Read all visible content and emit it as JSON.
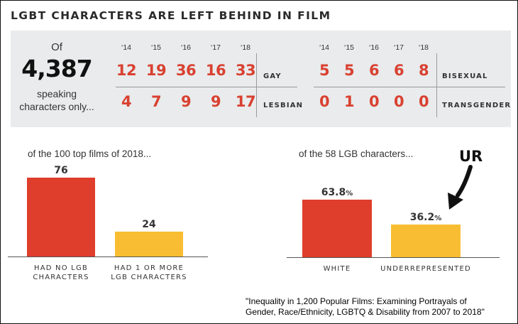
{
  "title": "LGBT CHARACTERS ARE LEFT BEHIND IN FILM",
  "summary": {
    "of_label": "Of",
    "total": "4,387",
    "caption_line1": "speaking",
    "caption_line2": "characters only..."
  },
  "years": [
    "‘14",
    "‘15",
    "‘16",
    "‘17",
    "‘18"
  ],
  "gay_lesbian_table": {
    "rows": [
      {
        "label": "GAY",
        "values": [
          12,
          19,
          36,
          16,
          33
        ]
      },
      {
        "label": "LESBIAN",
        "values": [
          4,
          7,
          9,
          9,
          17
        ]
      }
    ]
  },
  "bisexual_transgender_table": {
    "rows": [
      {
        "label": "BISEXUAL",
        "values": [
          5,
          5,
          6,
          6,
          8
        ]
      },
      {
        "label": "TRANSGENDER",
        "values": [
          0,
          1,
          0,
          0,
          0
        ]
      }
    ]
  },
  "colors": {
    "red": "#de3e2b",
    "yellow": "#f8bd32",
    "number_red": "#d94131",
    "panel_bg": "#e9ebec"
  },
  "annotation": {
    "text": "UR",
    "target": "UNDERREPRESENTED"
  },
  "source_line1": "\"Inequality in 1,200 Popular Films: Examining Portrayals of",
  "source_line2": "Gender, Race/Ethnicity, LGBTQ & Disability from 2007 to 2018\"",
  "chart_data": [
    {
      "type": "bar",
      "subtitle": "of the 100 top films of 2018...",
      "categories": [
        "HAD NO LGB CHARACTERS",
        "HAD 1 OR MORE LGB CHARACTERS"
      ],
      "category_lines": [
        [
          "HAD NO LGB",
          "CHARACTERS"
        ],
        [
          "HAD 1 OR MORE",
          "LGB CHARACTERS"
        ]
      ],
      "values": [
        76,
        24
      ],
      "value_labels": [
        "76",
        "24"
      ],
      "value_suffix": "",
      "colors": [
        "#de3e2b",
        "#f8bd32"
      ],
      "ylim": [
        0,
        100
      ]
    },
    {
      "type": "bar",
      "subtitle": "of the 58 LGB characters...",
      "categories": [
        "WHITE",
        "UNDERREPRESENTED"
      ],
      "category_lines": [
        [
          "WHITE"
        ],
        [
          "UNDERREPRESENTED"
        ]
      ],
      "values": [
        63.8,
        36.2
      ],
      "value_labels": [
        "63.8",
        "36.2"
      ],
      "value_suffix": "%",
      "colors": [
        "#de3e2b",
        "#f8bd32"
      ],
      "ylim": [
        0,
        100
      ]
    }
  ]
}
